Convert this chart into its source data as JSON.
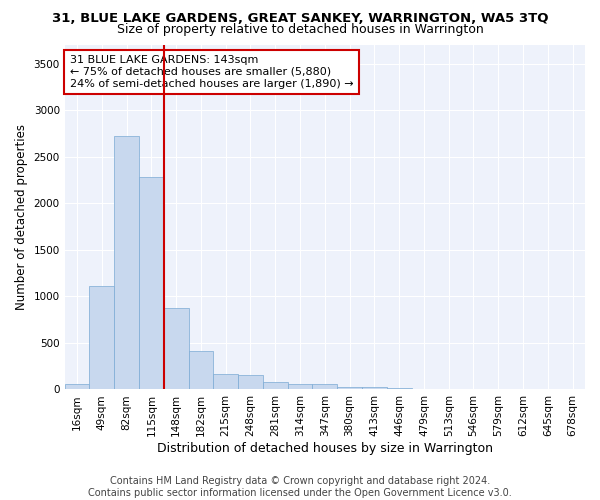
{
  "title": "31, BLUE LAKE GARDENS, GREAT SANKEY, WARRINGTON, WA5 3TQ",
  "subtitle": "Size of property relative to detached houses in Warrington",
  "xlabel": "Distribution of detached houses by size in Warrington",
  "ylabel": "Number of detached properties",
  "bar_color": "#c8d8ee",
  "bar_edge_color": "#7aaad4",
  "categories": [
    "16sqm",
    "49sqm",
    "82sqm",
    "115sqm",
    "148sqm",
    "182sqm",
    "215sqm",
    "248sqm",
    "281sqm",
    "314sqm",
    "347sqm",
    "380sqm",
    "413sqm",
    "446sqm",
    "479sqm",
    "513sqm",
    "546sqm",
    "579sqm",
    "612sqm",
    "645sqm",
    "678sqm"
  ],
  "values": [
    55,
    1110,
    2720,
    2280,
    870,
    415,
    170,
    160,
    85,
    55,
    55,
    30,
    25,
    20,
    5,
    0,
    0,
    0,
    0,
    0,
    0
  ],
  "vline_index": 3.5,
  "vline_color": "#cc0000",
  "annotation_line1": "31 BLUE LAKE GARDENS: 143sqm",
  "annotation_line2": "← 75% of detached houses are smaller (5,880)",
  "annotation_line3": "24% of semi-detached houses are larger (1,890) →",
  "annotation_box_color": "#cc0000",
  "ylim": [
    0,
    3700
  ],
  "yticks": [
    0,
    500,
    1000,
    1500,
    2000,
    2500,
    3000,
    3500
  ],
  "footer_line1": "Contains HM Land Registry data © Crown copyright and database right 2024.",
  "footer_line2": "Contains public sector information licensed under the Open Government Licence v3.0.",
  "title_fontsize": 9.5,
  "subtitle_fontsize": 9,
  "ylabel_fontsize": 8.5,
  "xlabel_fontsize": 9,
  "tick_fontsize": 7.5,
  "annotation_fontsize": 8,
  "footer_fontsize": 7,
  "background_color": "#eef2fb",
  "grid_color": "#ffffff",
  "fig_width": 6.0,
  "fig_height": 5.0
}
